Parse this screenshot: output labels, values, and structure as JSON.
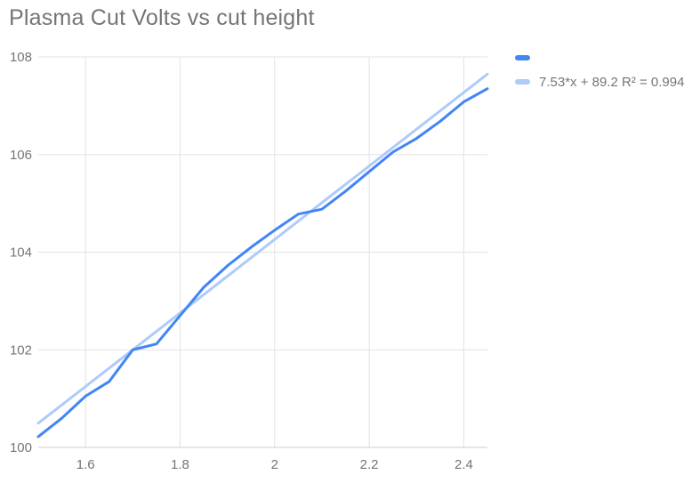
{
  "colors": {
    "series_line": "#4285f4",
    "trendline": "#aecbfa",
    "title_text": "#757575",
    "axis_text": "#757575",
    "gridline": "#e3e3e3",
    "axis_line": "#cccccc",
    "background": "#ffffff"
  },
  "legend": {
    "position": "right-top",
    "items": [
      {
        "label": "",
        "color": "#4285f4"
      },
      {
        "label": "7.53*x + 89.2 R² = 0.994",
        "color": "#aecbfa"
      }
    ]
  },
  "chart_data": {
    "type": "line",
    "title": "Plasma Cut Volts vs cut height",
    "xlabel": "",
    "ylabel": "",
    "xlim": [
      1.5,
      2.45
    ],
    "ylim": [
      100,
      108
    ],
    "grid": true,
    "legend_position": "right-top",
    "x_ticks": {
      "values": [
        1.6,
        1.8,
        2.0,
        2.2,
        2.4
      ],
      "labels": [
        "1.6",
        "1.8",
        "2",
        "2.2",
        "2.4"
      ]
    },
    "y_ticks": {
      "values": [
        100,
        102,
        104,
        106,
        108
      ],
      "labels": [
        "100",
        "102",
        "104",
        "106",
        "108"
      ]
    },
    "series": [
      {
        "name": "",
        "kind": "data",
        "color": "#4285f4",
        "x": [
          1.5,
          1.55,
          1.6,
          1.65,
          1.7,
          1.75,
          1.8,
          1.85,
          1.9,
          1.95,
          2.0,
          2.05,
          2.1,
          2.15,
          2.2,
          2.25,
          2.3,
          2.35,
          2.4,
          2.45
        ],
        "y": [
          100.22,
          100.6,
          101.05,
          101.35,
          102.0,
          102.12,
          102.7,
          103.28,
          103.72,
          104.1,
          104.45,
          104.78,
          104.88,
          105.25,
          105.65,
          106.05,
          106.33,
          106.68,
          107.08,
          107.35
        ]
      },
      {
        "name": "7.53*x + 89.2 R² = 0.994",
        "kind": "trendline",
        "color": "#aecbfa",
        "equation": "7.53*x + 89.2",
        "slope": 7.53,
        "intercept": 89.2,
        "r_squared": 0.994,
        "x_range": [
          1.5,
          2.45
        ]
      }
    ]
  }
}
